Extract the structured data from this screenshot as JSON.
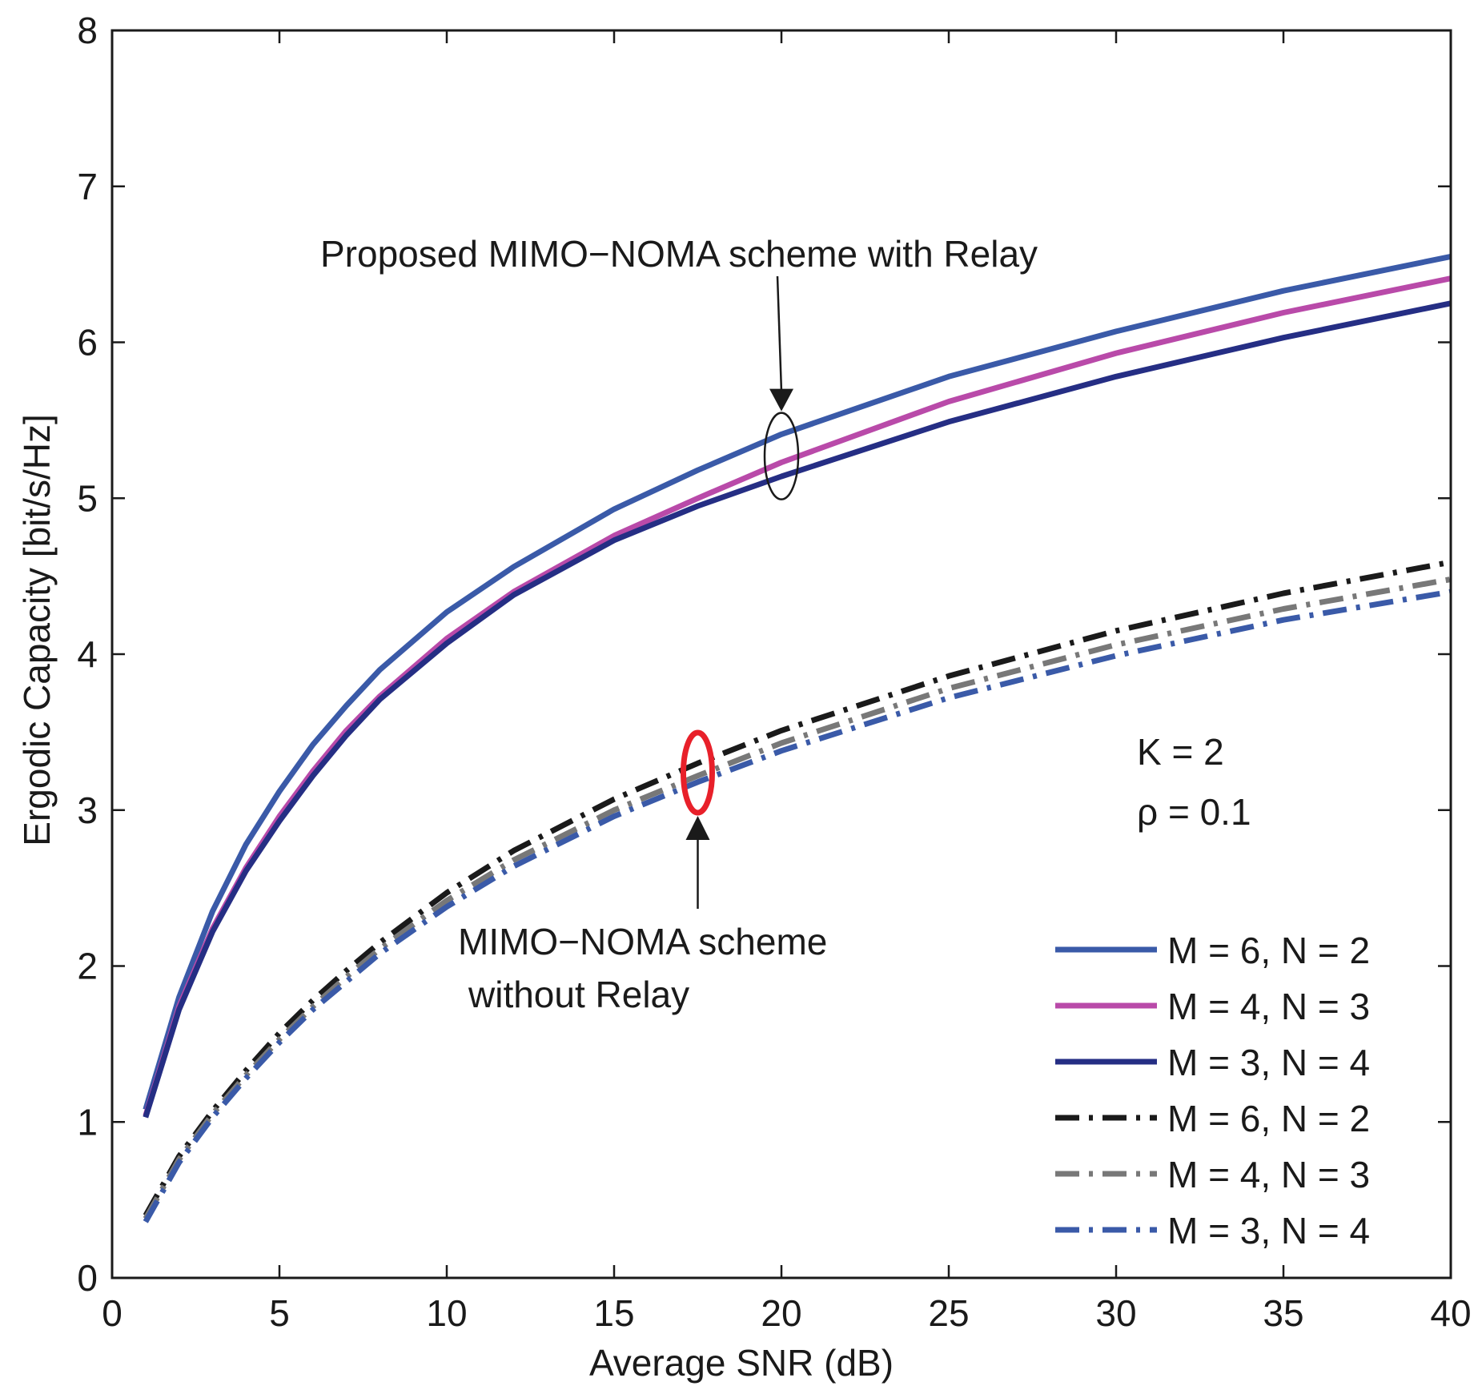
{
  "chart_data": {
    "type": "line",
    "title": "",
    "xlabel": "Average SNR (dB)",
    "ylabel": "Ergodic Capacity [bit/s/Hz]",
    "xlim": [
      0,
      40
    ],
    "ylim": [
      0,
      8
    ],
    "xticks": [
      0,
      5,
      10,
      15,
      20,
      25,
      30,
      35,
      40
    ],
    "yticks": [
      0,
      1,
      2,
      3,
      4,
      5,
      6,
      7,
      8
    ],
    "grid": false,
    "legend_position": "bottom-right",
    "x": [
      1,
      2,
      3,
      4,
      5,
      6,
      7,
      8,
      10,
      12,
      15,
      17.5,
      20,
      25,
      30,
      35,
      40
    ],
    "series": [
      {
        "name": "M = 6, N = 2",
        "group": "with relay",
        "color": "#3a5aa8",
        "style": "solid",
        "values": [
          1.08,
          1.8,
          2.35,
          2.78,
          3.12,
          3.42,
          3.67,
          3.9,
          4.27,
          4.56,
          4.93,
          5.18,
          5.41,
          5.78,
          6.07,
          6.33,
          6.55
        ]
      },
      {
        "name": "M = 4, N = 3",
        "group": "with relay",
        "color": "#b94aa9",
        "style": "solid",
        "values": [
          1.04,
          1.74,
          2.24,
          2.63,
          2.96,
          3.25,
          3.51,
          3.73,
          4.1,
          4.4,
          4.76,
          5.0,
          5.23,
          5.62,
          5.93,
          6.19,
          6.41
        ]
      },
      {
        "name": "M = 3, N = 4",
        "group": "with relay",
        "color": "#252e84",
        "style": "solid",
        "values": [
          1.03,
          1.72,
          2.22,
          2.61,
          2.93,
          3.22,
          3.48,
          3.71,
          4.07,
          4.38,
          4.73,
          4.95,
          5.14,
          5.49,
          5.78,
          6.03,
          6.25
        ]
      },
      {
        "name": "M = 6, N = 2",
        "group": "without relay",
        "color": "#1a1a1a",
        "style": "dashdot",
        "values": [
          0.4,
          0.78,
          1.07,
          1.33,
          1.57,
          1.78,
          1.97,
          2.15,
          2.47,
          2.74,
          3.07,
          3.3,
          3.51,
          3.86,
          4.15,
          4.39,
          4.59
        ]
      },
      {
        "name": "M = 4, N = 3",
        "group": "without relay",
        "color": "#787878",
        "style": "dashdot",
        "values": [
          0.38,
          0.76,
          1.05,
          1.3,
          1.53,
          1.74,
          1.93,
          2.11,
          2.42,
          2.68,
          3.0,
          3.22,
          3.43,
          3.78,
          4.06,
          4.29,
          4.48
        ]
      },
      {
        "name": "M = 3, N = 4",
        "group": "without relay",
        "color": "#3a5aa8",
        "style": "dashdot",
        "values": [
          0.36,
          0.74,
          1.03,
          1.28,
          1.51,
          1.72,
          1.9,
          2.08,
          2.38,
          2.64,
          2.96,
          3.18,
          3.38,
          3.72,
          3.99,
          4.22,
          4.4
        ]
      }
    ],
    "annotations": {
      "with_relay": "Proposed MIMO−NOMA scheme with Relay",
      "without_relay_line1": "MIMO−NOMA scheme",
      "without_relay_line2": "without Relay",
      "params_k": "K = 2",
      "params_rho": "ρ = 0.1"
    },
    "annotation_colors": {
      "with_relay_ellipse": "#1a1a1a",
      "without_relay_ellipse": "#e8202a"
    }
  }
}
